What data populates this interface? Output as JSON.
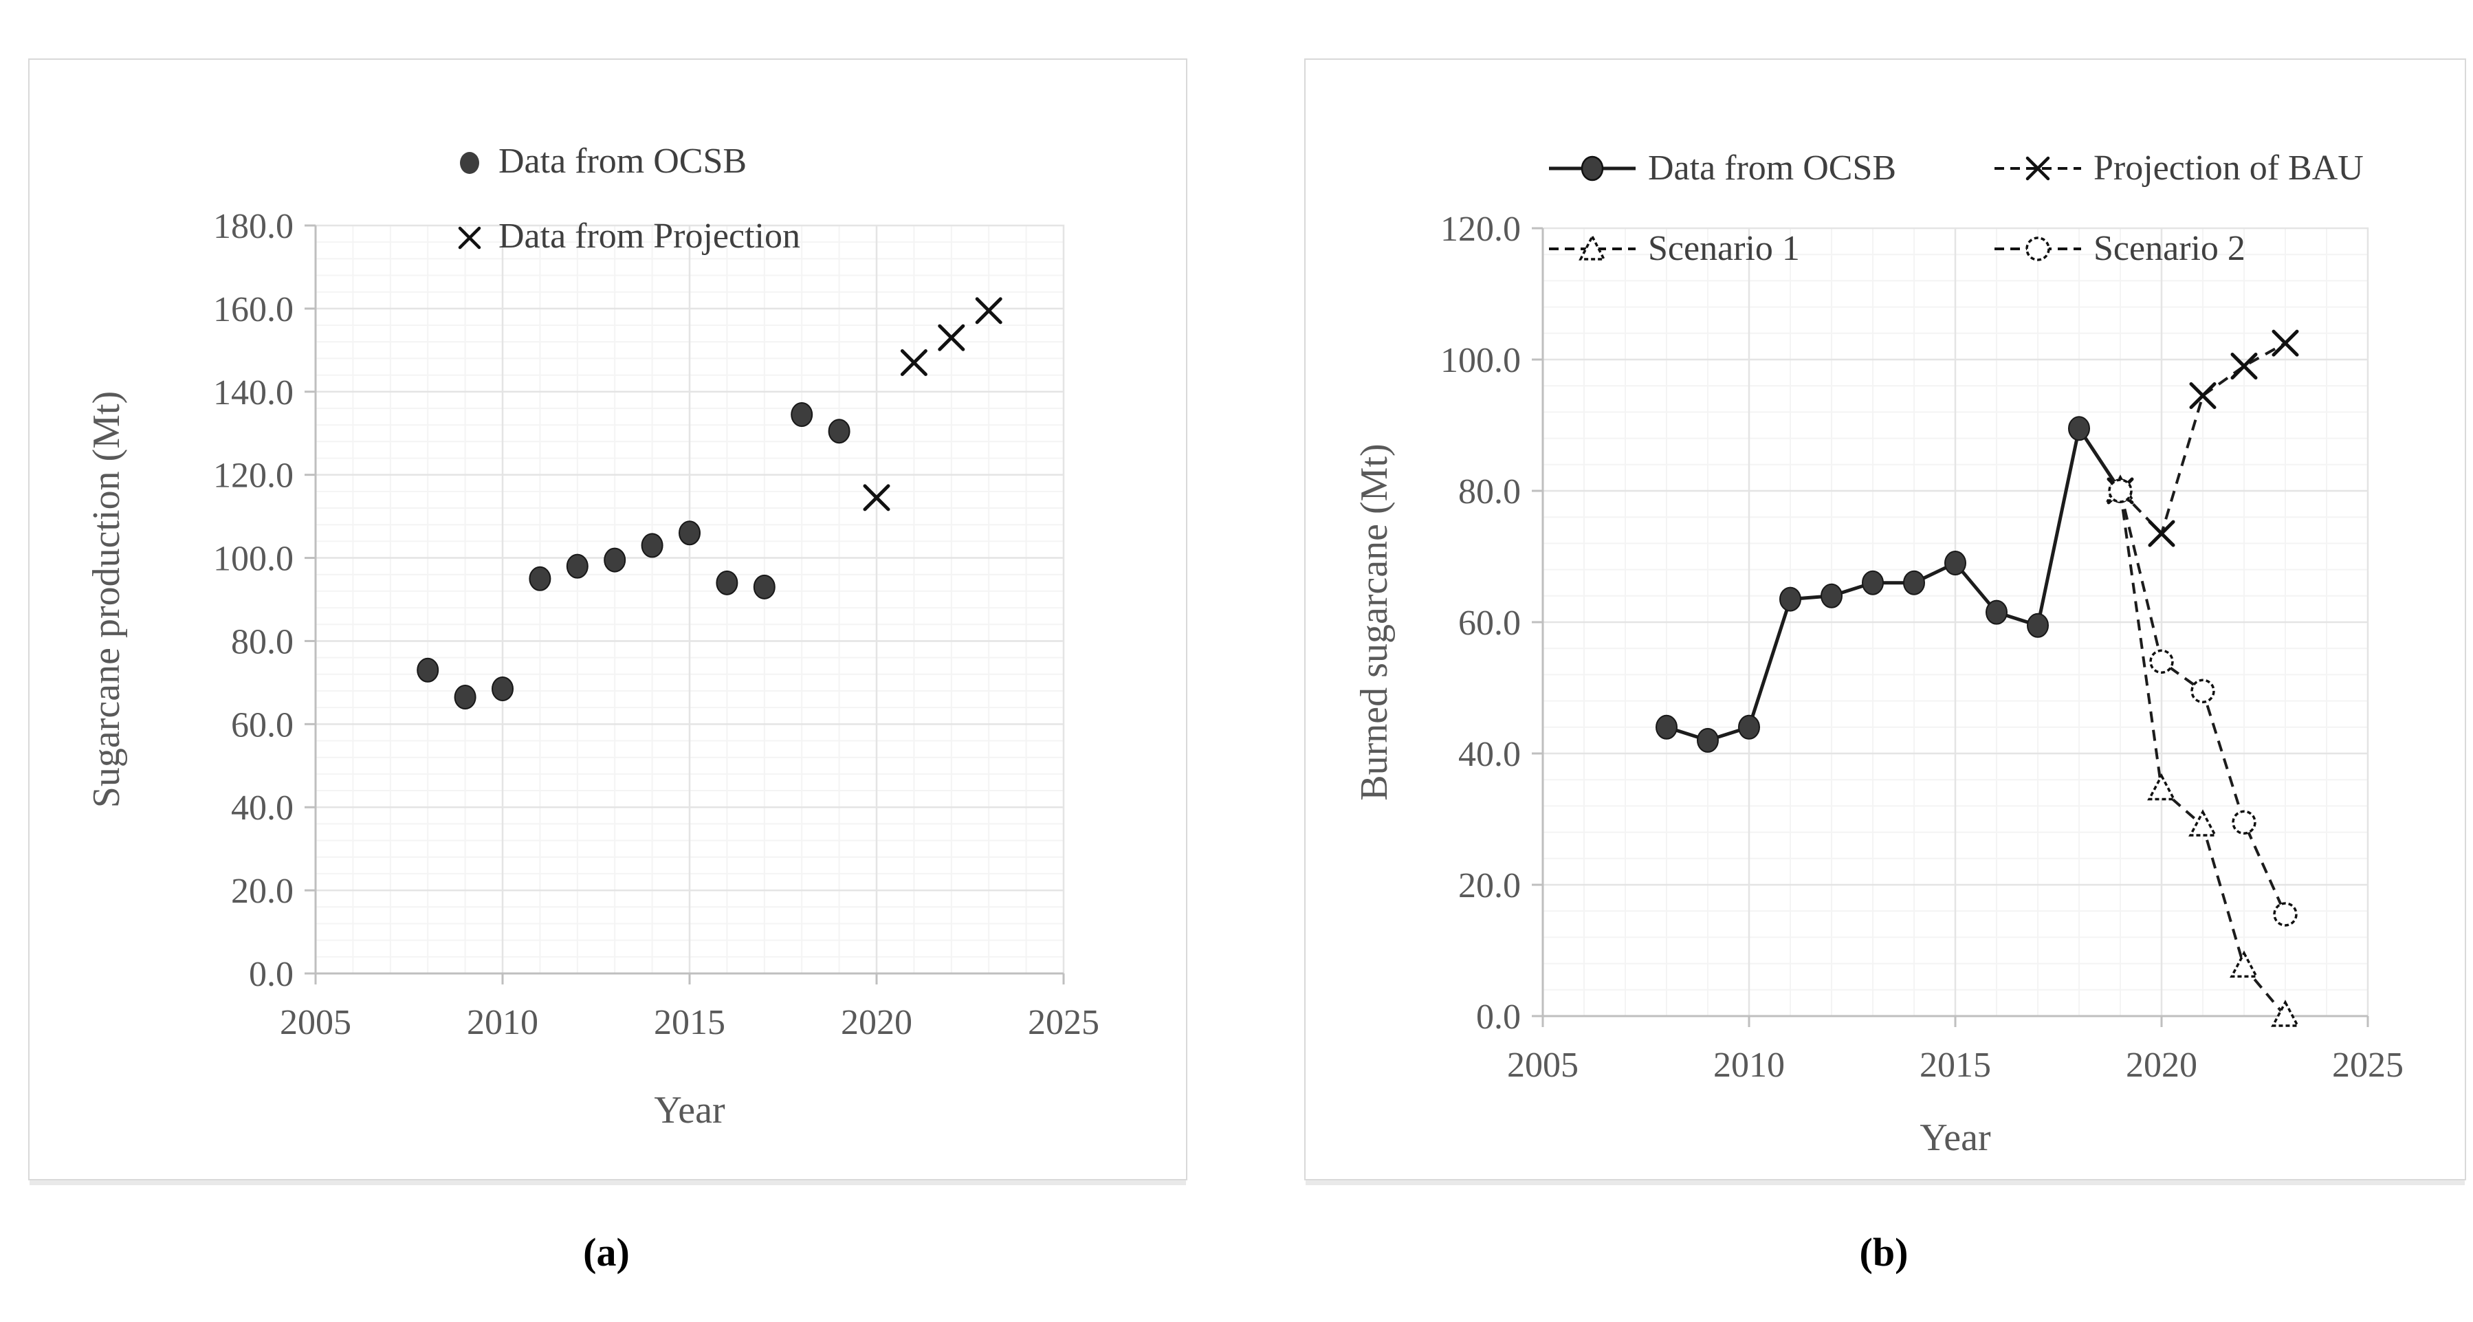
{
  "captions": {
    "a": "(a)",
    "b": "(b)"
  },
  "colors": {
    "marker_fill": "#3d3d3d",
    "series_line": "#1c1c1c",
    "tick_label": "#595959",
    "axis_title": "#595959",
    "legend_text": "#3f3f3f",
    "grid_major": "#e4e4e4",
    "grid_minor": "#f4f4f4",
    "axis_line": "#bfbfbf",
    "panel_border": "#d9d9d9"
  },
  "chart_data": [
    {
      "key": "a",
      "type": "scatter",
      "title": "",
      "xlabel": "Year",
      "ylabel": "Sugarcane production (Mt)",
      "xlim": [
        2005,
        2025
      ],
      "ylim": [
        0,
        180
      ],
      "xtick_step": 5,
      "ytick_step": 20,
      "x_minor": 1,
      "y_minor": 4,
      "grid": "on",
      "legend_position": "top-center-stacked",
      "series": [
        {
          "name": "Data from OCSB",
          "marker": "dot",
          "line": "none",
          "x": [
            2008,
            2009,
            2010,
            2011,
            2012,
            2013,
            2014,
            2015,
            2016,
            2017,
            2018,
            2019
          ],
          "y": [
            73,
            66.5,
            68.5,
            95,
            98,
            99.5,
            103,
            106,
            94,
            93,
            134.5,
            130.5
          ]
        },
        {
          "name": "Data from Projection",
          "marker": "x",
          "line": "none",
          "x": [
            2020,
            2021,
            2022,
            2023
          ],
          "y": [
            114.5,
            147,
            153,
            159.5
          ]
        }
      ]
    },
    {
      "key": "b",
      "type": "line",
      "title": "",
      "xlabel": "Year",
      "ylabel": "Burned sugarcane (Mt)",
      "xlim": [
        2005,
        2025
      ],
      "ylim": [
        0,
        120
      ],
      "xtick_step": 5,
      "ytick_step": 20,
      "x_minor": 1,
      "y_minor": 4,
      "grid": "on",
      "legend_position": "top-grid-2x2",
      "series": [
        {
          "name": "Data from OCSB",
          "marker": "dot",
          "line": "solid",
          "x": [
            2008,
            2009,
            2010,
            2011,
            2012,
            2013,
            2014,
            2015,
            2016,
            2017,
            2018,
            2019
          ],
          "y": [
            44,
            42,
            44,
            63.5,
            64,
            66,
            66,
            69,
            61.5,
            59.5,
            89.5,
            80
          ]
        },
        {
          "name": "Projection of BAU",
          "marker": "x",
          "line": "dashed",
          "x": [
            2019,
            2020,
            2021,
            2022,
            2023
          ],
          "y": [
            80,
            73.5,
            94.5,
            99,
            102.5
          ]
        },
        {
          "name": "Scenario 1",
          "marker": "triangle",
          "line": "dashed",
          "x": [
            2019,
            2020,
            2021,
            2022,
            2023
          ],
          "y": [
            80,
            34.5,
            29,
            7.5,
            0
          ]
        },
        {
          "name": "Scenario 2",
          "marker": "circle",
          "line": "dashed",
          "x": [
            2019,
            2020,
            2021,
            2022,
            2023
          ],
          "y": [
            80,
            54,
            49.5,
            29.5,
            15.5
          ]
        }
      ]
    }
  ]
}
